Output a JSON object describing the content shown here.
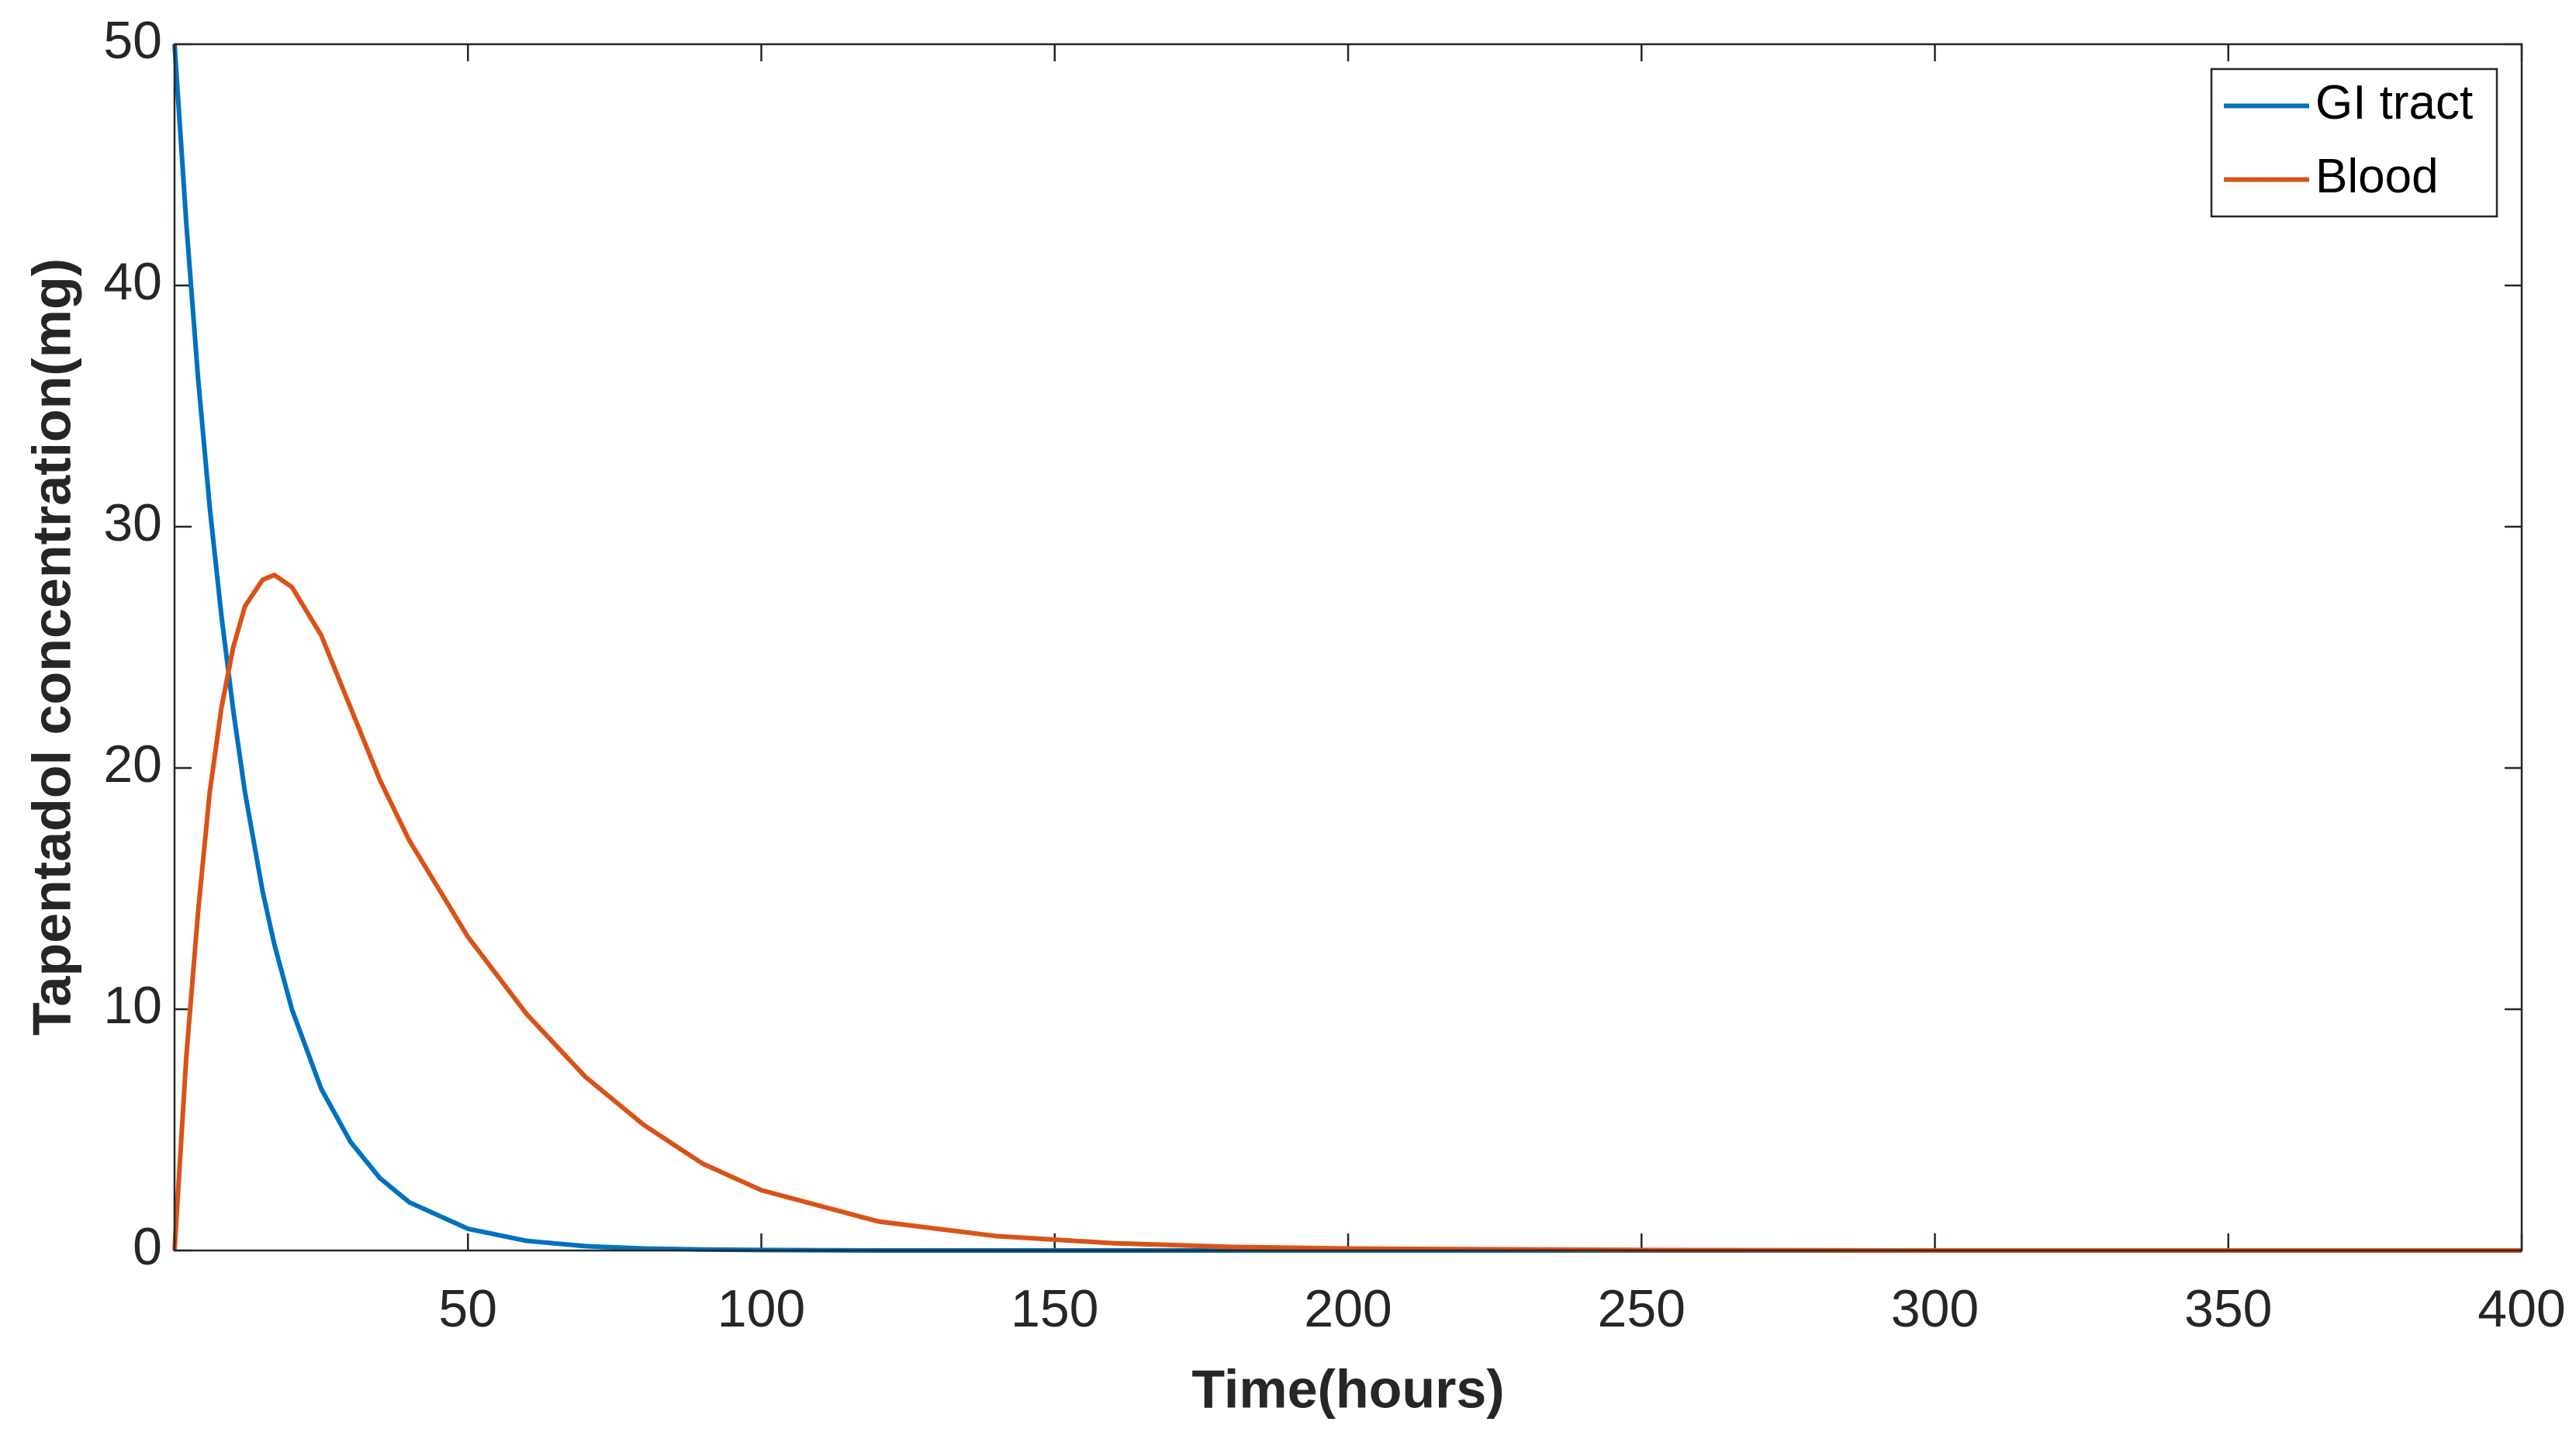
{
  "chart_data": {
    "type": "line",
    "xlabel": "Time(hours)",
    "ylabel": "Tapentadol concentration(mg)",
    "x": [
      0,
      2,
      4,
      6,
      8,
      10,
      12,
      15,
      17,
      20,
      25,
      30,
      35,
      40,
      50,
      60,
      70,
      80,
      90,
      100,
      120,
      140,
      160,
      180,
      200,
      250,
      300,
      350,
      400
    ],
    "series": [
      {
        "name": "GI tract",
        "color": "#0072BD",
        "values": [
          50,
          42.6,
          36.2,
          30.8,
          26.3,
          22.4,
          19.0,
          14.9,
          12.7,
          10.0,
          6.7,
          4.5,
          3.0,
          2.0,
          0.9,
          0.4,
          0.18,
          0.08,
          0.04,
          0.02,
          0,
          0,
          0,
          0,
          0,
          0,
          0,
          0,
          0
        ]
      },
      {
        "name": "Blood",
        "color": "#D95319",
        "values": [
          0,
          8,
          14,
          19,
          22.5,
          25,
          26.7,
          27.8,
          28,
          27.5,
          25.5,
          22.5,
          19.5,
          17,
          13,
          9.8,
          7.2,
          5.2,
          3.6,
          2.5,
          1.2,
          0.6,
          0.3,
          0.15,
          0.08,
          0.02,
          0,
          0,
          0
        ]
      }
    ],
    "xlim": [
      0,
      400
    ],
    "xticks": [
      50,
      100,
      150,
      200,
      250,
      300,
      350,
      400
    ],
    "ylim": [
      0,
      50
    ],
    "yticks": [
      0,
      10,
      20,
      30,
      40,
      50
    ],
    "grid": false,
    "legend": "northeast"
  }
}
